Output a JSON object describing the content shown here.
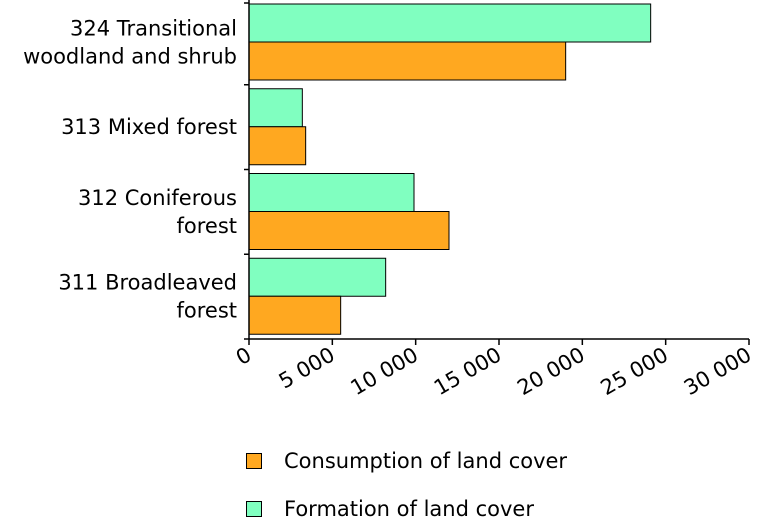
{
  "chart_data": {
    "type": "bar",
    "orientation": "horizontal",
    "categories": [
      [
        "324 Transitional",
        "woodland and shrub"
      ],
      [
        "313 Mixed forest"
      ],
      [
        "312 Coniferous",
        "forest"
      ],
      [
        "311 Broadleaved",
        "forest"
      ]
    ],
    "series": [
      {
        "name": "Formation of land cover",
        "color": "#80ffc0",
        "values": [
          24100,
          3200,
          9900,
          8200
        ]
      },
      {
        "name": "Consumption of land cover",
        "color": "#ffa820",
        "values": [
          19000,
          3400,
          12000,
          5500
        ]
      }
    ],
    "xlim": [
      0,
      30000
    ],
    "xticks": [
      0,
      5000,
      10000,
      15000,
      20000,
      25000,
      30000
    ],
    "xtick_labels": [
      "0",
      "5 000",
      "10 000",
      "15 000",
      "20 000",
      "25 000",
      "30 000"
    ],
    "grid": false,
    "legend_placement": "bottom"
  },
  "legend": [
    {
      "label": "Consumption of land cover",
      "color": "#ffa820"
    },
    {
      "label": "Formation of land cover",
      "color": "#80ffc0"
    }
  ]
}
